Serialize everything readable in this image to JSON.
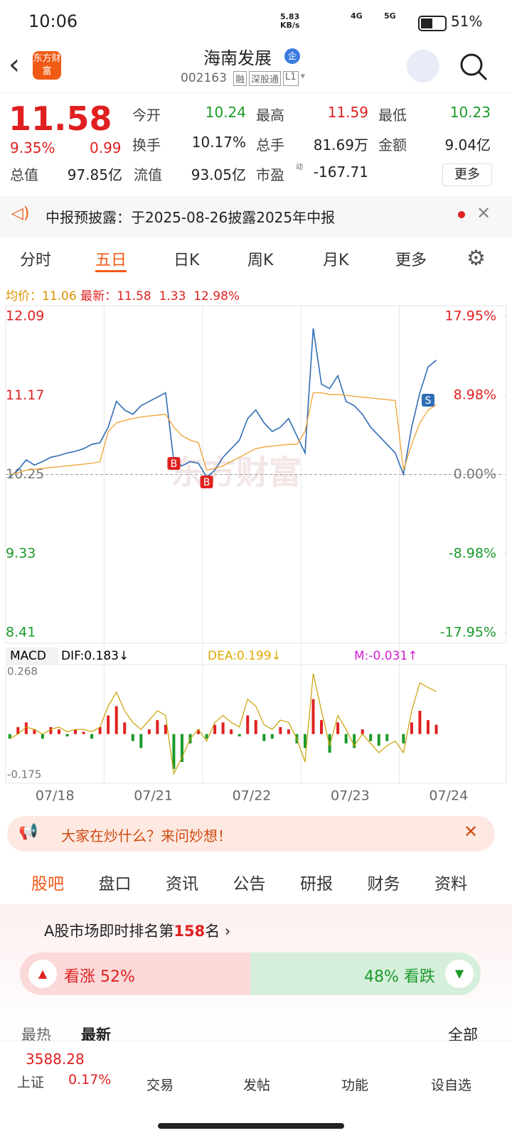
{
  "status": {
    "time": "10:06",
    "speed": "5.83",
    "speed_unit": "KB/s",
    "net1": "4G",
    "net2": "5G",
    "battery": "51%"
  },
  "header": {
    "title": "海南发展",
    "badge": "企",
    "code": "002163",
    "tags": [
      "融",
      "深股通",
      "L1"
    ],
    "logo": "东方财富"
  },
  "quote": {
    "price": "11.58",
    "change_pct": "9.35%",
    "change": "0.99",
    "more": "更多",
    "fields": [
      [
        "今开",
        "10.24"
      ],
      [
        "最高",
        "11.59"
      ],
      [
        "最低",
        "10.23"
      ],
      [
        "换手",
        "10.17%"
      ],
      [
        "总手",
        "81.69万"
      ],
      [
        "金额",
        "9.04亿"
      ],
      [
        "总值",
        "97.85亿"
      ],
      [
        "流值",
        "93.05亿"
      ],
      [
        "市盈",
        "-167.71"
      ]
    ],
    "pe_tag": "动"
  },
  "notice": "中报预披露：于2025-08-26披露2025年中报",
  "tabs": [
    "分时",
    "五日",
    "日K",
    "周K",
    "月K",
    "更多"
  ],
  "info": {
    "avg_label": "均价：",
    "avg": "11.06",
    "latest_label": "最新：",
    "latest": "11.58",
    "change": "1.33",
    "change_pct": "12.98%"
  },
  "price_chart": {
    "type": "line",
    "watermark": "东方财富",
    "markers": [
      "B",
      "B",
      "S"
    ],
    "days": [
      "07/18",
      "07/21",
      "07/22",
      "07/23",
      "07/24"
    ],
    "ylim": [
      8.41,
      12.09
    ],
    "yticks": [
      8.41,
      9.33,
      10.25,
      11.17,
      12.09
    ],
    "y2lim": [
      -17.95,
      17.95
    ],
    "y2ticks": [
      {
        "value": -17.95,
        "label": "-17.95%"
      },
      {
        "value": -8.98,
        "label": "-8.98%"
      },
      {
        "value": 0,
        "label": "0.00%"
      },
      {
        "value": 8.98,
        "label": "8.98%"
      },
      {
        "value": 17.95,
        "label": "17.95%"
      }
    ],
    "series": [
      {
        "name": "最新",
        "color": "#2f6db5",
        "values": [
          10.22,
          10.3,
          10.42,
          10.36,
          10.4,
          10.45,
          10.47,
          10.5,
          10.52,
          10.55,
          10.6,
          10.62,
          10.8,
          11.1,
          11.0,
          10.95,
          11.05,
          11.1,
          11.15,
          11.2,
          10.4,
          10.35,
          10.4,
          10.38,
          10.22,
          10.3,
          10.45,
          10.55,
          10.65,
          10.9,
          11.0,
          10.85,
          10.75,
          10.8,
          10.9,
          10.7,
          10.5,
          11.95,
          11.3,
          11.25,
          11.4,
          11.1,
          11.05,
          10.95,
          10.8,
          10.7,
          10.6,
          10.5,
          10.25,
          10.8,
          11.2,
          11.5,
          11.58
        ]
      },
      {
        "name": "均价",
        "color": "#f0a030",
        "values": [
          10.25,
          10.27,
          10.3,
          10.31,
          10.32,
          10.33,
          10.34,
          10.35,
          10.36,
          10.37,
          10.38,
          10.4,
          10.75,
          10.85,
          10.88,
          10.9,
          10.92,
          10.93,
          10.94,
          10.95,
          10.8,
          10.7,
          10.65,
          10.62,
          10.3,
          10.32,
          10.35,
          10.4,
          10.45,
          10.5,
          10.55,
          10.57,
          10.58,
          10.59,
          10.6,
          10.6,
          10.75,
          11.2,
          11.2,
          11.18,
          11.18,
          11.17,
          11.16,
          11.15,
          11.14,
          11.13,
          11.12,
          11.11,
          10.3,
          10.6,
          10.85,
          11.0,
          11.06
        ]
      }
    ]
  },
  "macd_chart": {
    "type": "bar",
    "name": "MACD",
    "dif": "DIF:0.183↓",
    "dea": "DEA:0.199↓",
    "m": "M:-0.031↑",
    "ylim": [
      -0.175,
      0.268
    ],
    "yticks": [
      -0.175,
      0.268
    ],
    "bars": [
      -0.02,
      0.03,
      0.05,
      0.02,
      -0.02,
      0.03,
      0.02,
      -0.01,
      0.02,
      0.01,
      -0.02,
      0.03,
      0.08,
      0.12,
      0.05,
      -0.03,
      -0.06,
      0.02,
      0.06,
      0.04,
      -0.15,
      -0.12,
      -0.04,
      0.02,
      -0.02,
      0.04,
      0.05,
      0.02,
      -0.01,
      0.08,
      0.06,
      -0.03,
      -0.02,
      0.03,
      0.02,
      -0.04,
      -0.06,
      0.15,
      0.06,
      -0.08,
      0.05,
      -0.04,
      -0.06,
      0.02,
      -0.03,
      -0.05,
      -0.03,
      0.0,
      -0.04,
      0.05,
      0.1,
      0.06,
      0.04
    ],
    "dif_line": {
      "color": "#c8a000",
      "values": [
        -0.02,
        0.0,
        0.03,
        0.02,
        0.0,
        0.02,
        0.03,
        0.01,
        0.02,
        0.02,
        0.01,
        0.03,
        0.12,
        0.18,
        0.1,
        0.05,
        0.02,
        0.06,
        0.1,
        0.08,
        -0.17,
        -0.1,
        -0.02,
        0.02,
        -0.03,
        0.05,
        0.08,
        0.05,
        0.03,
        0.15,
        0.12,
        0.04,
        0.02,
        0.06,
        0.05,
        -0.02,
        -0.12,
        0.26,
        0.1,
        -0.05,
        0.08,
        0.02,
        -0.05,
        0.0,
        -0.04,
        -0.08,
        -0.05,
        -0.03,
        -0.08,
        0.1,
        0.22,
        0.2,
        0.183
      ]
    }
  },
  "banner": "大家在炒什么？来问妙想！",
  "tabs2": [
    "股吧",
    "盘口",
    "资讯",
    "公告",
    "研报",
    "财务",
    "资料"
  ],
  "rank": {
    "prefix": "A股市场即时排名第",
    "num": "158",
    "suffix": "名"
  },
  "vote": {
    "up": "看涨 52%",
    "down": "48% 看跌"
  },
  "sort": [
    "最热",
    "最新",
    "全部"
  ],
  "nav": {
    "index": "3588.28",
    "index_name": "上证",
    "index_pct": "0.17%",
    "items": [
      "交易",
      "发帖",
      "功能",
      "设自选"
    ]
  }
}
